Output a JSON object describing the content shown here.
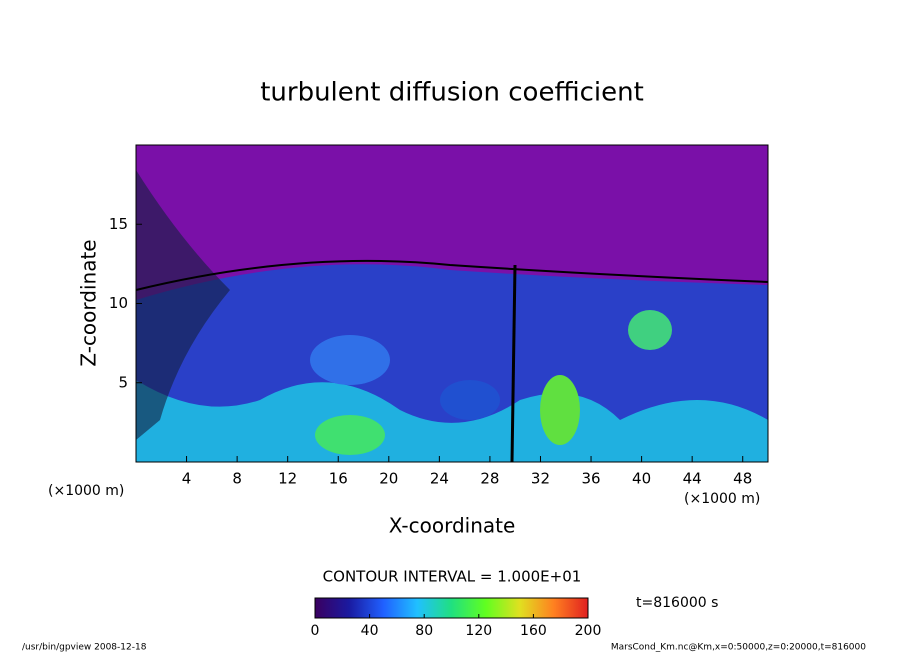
{
  "chart_data": {
    "type": "contour",
    "title": "turbulent diffusion coefficient",
    "x_label": "X-coordinate",
    "y_label": "Z-coordinate",
    "x_unit": "(×1000 m)",
    "y_unit": "(×1000 m)",
    "xlim": [
      0,
      50
    ],
    "xticks": [
      4,
      8,
      12,
      16,
      20,
      24,
      28,
      32,
      36,
      40,
      44,
      48
    ],
    "ylim": [
      0,
      20
    ],
    "yticks": [
      5,
      10,
      15
    ],
    "contour_interval_label": "CONTOUR INTERVAL = 1.000E+01",
    "time_label": "t=816000 s",
    "colorbar": {
      "lim": [
        0,
        200
      ],
      "ticks": [
        0,
        40,
        80,
        120,
        160,
        200
      ],
      "colors": [
        "#3a0060",
        "#1a1aa0",
        "#2060ff",
        "#20c0ff",
        "#20e080",
        "#60ff20",
        "#e0e020",
        "#ff8020",
        "#e02020"
      ]
    },
    "footer_left": "/usr/bin/gpview  2008-12-18",
    "footer_right": "MarsCond_Km.nc@Km,x=0:50000,z=0:20000,t=816000"
  }
}
